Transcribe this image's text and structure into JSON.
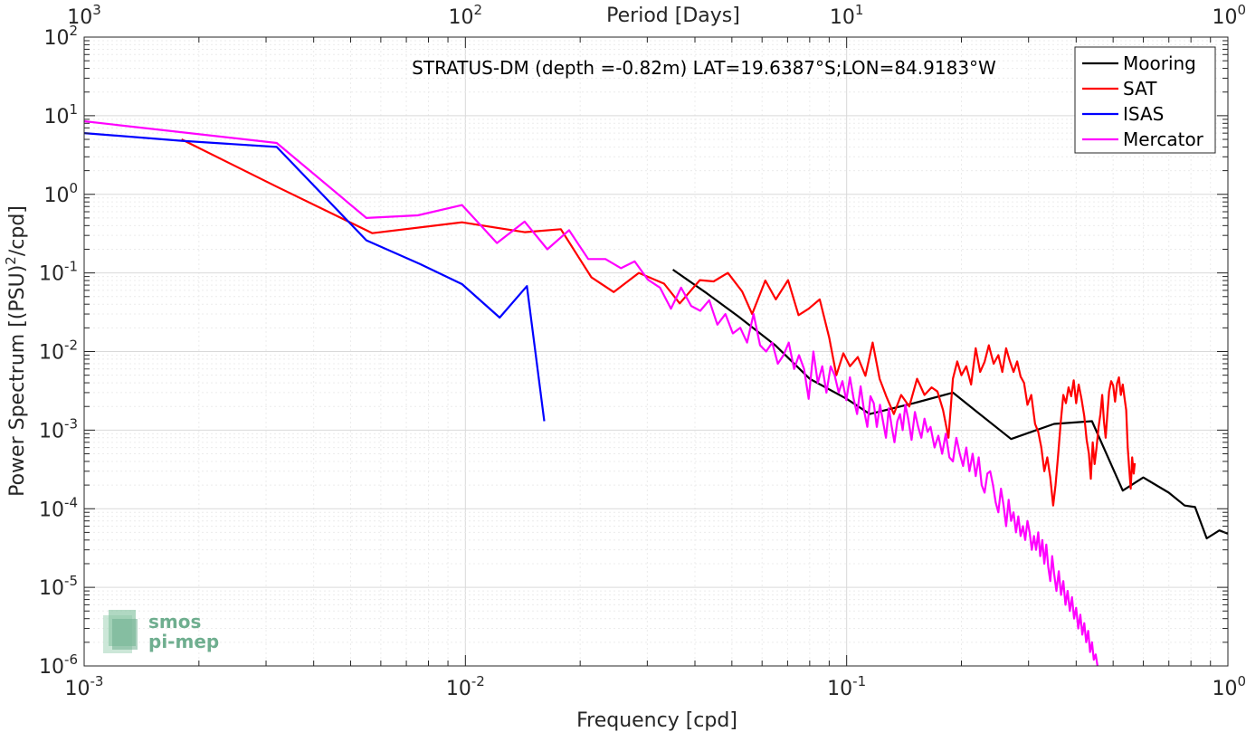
{
  "chart_data": {
    "type": "line",
    "title": "STRATUS-DM (depth =-0.82m) LAT=19.6387°S;LON=84.9183°W",
    "xlabel": "Frequency [cpd]",
    "ylabel": "Power Spectrum [(PSU)²/cpd]",
    "ylabel_base": "Power Spectrum [(PSU)",
    "ylabel_sup": "2",
    "ylabel_tail": "/cpd]",
    "top_xlabel": "Period [Days]",
    "xscale": "log",
    "yscale": "log",
    "xlim": [
      0.001,
      1
    ],
    "ylim": [
      1e-06,
      100
    ],
    "grid": true,
    "legend_position": "top-right",
    "x_ticks": [
      {
        "value": 0.001,
        "base": "10",
        "exp": "-3"
      },
      {
        "value": 0.01,
        "base": "10",
        "exp": "-2"
      },
      {
        "value": 0.1,
        "base": "10",
        "exp": "-1"
      },
      {
        "value": 1,
        "base": "10",
        "exp": "0"
      }
    ],
    "y_ticks": [
      {
        "value": 1e-06,
        "base": "10",
        "exp": "-6"
      },
      {
        "value": 1e-05,
        "base": "10",
        "exp": "-5"
      },
      {
        "value": 0.0001,
        "base": "10",
        "exp": "-4"
      },
      {
        "value": 0.001,
        "base": "10",
        "exp": "-3"
      },
      {
        "value": 0.01,
        "base": "10",
        "exp": "-2"
      },
      {
        "value": 0.1,
        "base": "10",
        "exp": "-1"
      },
      {
        "value": 1,
        "base": "10",
        "exp": "0"
      },
      {
        "value": 10,
        "base": "10",
        "exp": "1"
      },
      {
        "value": 100,
        "base": "10",
        "exp": "2"
      }
    ],
    "top_x_ticks": [
      {
        "value": 0.001,
        "base": "10",
        "exp": "3"
      },
      {
        "value": 0.01,
        "base": "10",
        "exp": "2"
      },
      {
        "value": 0.1,
        "base": "10",
        "exp": "1"
      },
      {
        "value": 1,
        "base": "10",
        "exp": "0"
      }
    ],
    "series": [
      {
        "name": "Mooring",
        "color": "#000000",
        "points": [
          [
            0.035,
            0.11
          ],
          [
            0.043,
            0.055
          ],
          [
            0.052,
            0.028
          ],
          [
            0.065,
            0.012
          ],
          [
            0.08,
            0.0045
          ],
          [
            0.1,
            0.0025
          ],
          [
            0.115,
            0.0016
          ],
          [
            0.15,
            0.0022
          ],
          [
            0.19,
            0.003
          ],
          [
            0.22,
            0.0017
          ],
          [
            0.27,
            0.00077
          ],
          [
            0.35,
            0.0012
          ],
          [
            0.44,
            0.0013
          ],
          [
            0.53,
            0.00017
          ],
          [
            0.6,
            0.00025
          ],
          [
            0.7,
            0.00016
          ],
          [
            0.77,
            0.00011
          ],
          [
            0.82,
            0.000105
          ],
          [
            0.88,
            4.2e-05
          ],
          [
            0.95,
            5.3e-05
          ],
          [
            1.0,
            4.8e-05
          ]
        ]
      },
      {
        "name": "SAT",
        "color": "#ff0000",
        "points": [
          [
            0.0018,
            5.0
          ],
          [
            0.0032,
            1.25
          ],
          [
            0.0057,
            0.32
          ],
          [
            0.0098,
            0.44
          ],
          [
            0.0143,
            0.33
          ],
          [
            0.0178,
            0.36
          ],
          [
            0.0214,
            0.088
          ],
          [
            0.0245,
            0.057
          ],
          [
            0.0285,
            0.1
          ],
          [
            0.0332,
            0.073
          ],
          [
            0.0365,
            0.041
          ],
          [
            0.0412,
            0.081
          ],
          [
            0.0448,
            0.078
          ],
          [
            0.0488,
            0.1
          ],
          [
            0.0532,
            0.058
          ],
          [
            0.0565,
            0.03
          ],
          [
            0.0612,
            0.08
          ],
          [
            0.0652,
            0.046
          ],
          [
            0.0702,
            0.081
          ],
          [
            0.0748,
            0.029
          ],
          [
            0.0795,
            0.035
          ],
          [
            0.085,
            0.046
          ],
          [
            0.09,
            0.015
          ],
          [
            0.094,
            0.005
          ],
          [
            0.098,
            0.0095
          ],
          [
            0.102,
            0.0065
          ],
          [
            0.107,
            0.0085
          ],
          [
            0.112,
            0.0049
          ],
          [
            0.117,
            0.013
          ],
          [
            0.122,
            0.0045
          ],
          [
            0.127,
            0.0027
          ],
          [
            0.133,
            0.0016
          ],
          [
            0.139,
            0.0028
          ],
          [
            0.146,
            0.002
          ],
          [
            0.153,
            0.0045
          ],
          [
            0.16,
            0.0028
          ],
          [
            0.167,
            0.0035
          ],
          [
            0.173,
            0.0031
          ],
          [
            0.179,
            0.0018
          ],
          [
            0.185,
            0.0008
          ],
          [
            0.19,
            0.0045
          ],
          [
            0.195,
            0.0075
          ],
          [
            0.2,
            0.005
          ],
          [
            0.206,
            0.0065
          ],
          [
            0.212,
            0.0038
          ],
          [
            0.218,
            0.011
          ],
          [
            0.224,
            0.0055
          ],
          [
            0.23,
            0.0074
          ],
          [
            0.236,
            0.012
          ],
          [
            0.243,
            0.007
          ],
          [
            0.25,
            0.009
          ],
          [
            0.256,
            0.0055
          ],
          [
            0.262,
            0.011
          ],
          [
            0.268,
            0.0075
          ],
          [
            0.274,
            0.0055
          ],
          [
            0.28,
            0.0075
          ],
          [
            0.286,
            0.0048
          ],
          [
            0.292,
            0.004
          ],
          [
            0.298,
            0.0021
          ],
          [
            0.305,
            0.0028
          ],
          [
            0.312,
            0.0012
          ],
          [
            0.318,
            0.00095
          ],
          [
            0.324,
            0.0006
          ],
          [
            0.33,
            0.0003
          ],
          [
            0.336,
            0.00045
          ],
          [
            0.342,
            0.00025
          ],
          [
            0.348,
            0.00011
          ],
          [
            0.353,
            0.0002
          ],
          [
            0.359,
            0.0005
          ],
          [
            0.364,
            0.0012
          ],
          [
            0.37,
            0.0028
          ],
          [
            0.376,
            0.0022
          ],
          [
            0.382,
            0.0035
          ],
          [
            0.388,
            0.0027
          ],
          [
            0.394,
            0.0043
          ],
          [
            0.4,
            0.0022
          ],
          [
            0.406,
            0.0038
          ],
          [
            0.413,
            0.0025
          ],
          [
            0.42,
            0.0015
          ],
          [
            0.426,
            0.00075
          ],
          [
            0.432,
            0.0005
          ],
          [
            0.437,
            0.00024
          ],
          [
            0.442,
            0.0007
          ],
          [
            0.447,
            0.00037
          ],
          [
            0.452,
            0.00058
          ],
          [
            0.458,
            0.0011
          ],
          [
            0.463,
            0.0016
          ],
          [
            0.468,
            0.0028
          ],
          [
            0.473,
            0.0013
          ],
          [
            0.478,
            0.0008
          ],
          [
            0.483,
            0.0016
          ],
          [
            0.488,
            0.0031
          ],
          [
            0.494,
            0.0042
          ],
          [
            0.5,
            0.0037
          ],
          [
            0.506,
            0.0023
          ],
          [
            0.512,
            0.0039
          ],
          [
            0.518,
            0.0047
          ],
          [
            0.524,
            0.0028
          ],
          [
            0.53,
            0.0038
          ],
          [
            0.536,
            0.0025
          ],
          [
            0.541,
            0.0018
          ],
          [
            0.546,
            0.0006
          ],
          [
            0.551,
            0.00033
          ],
          [
            0.556,
            0.00018
          ],
          [
            0.561,
            0.00045
          ],
          [
            0.566,
            0.00028
          ],
          [
            0.57,
            0.00038
          ]
        ]
      },
      {
        "name": "ISAS",
        "color": "#0000ff",
        "points": [
          [
            0.001,
            6.0
          ],
          [
            0.0018,
            4.8
          ],
          [
            0.0032,
            4.0
          ],
          [
            0.0055,
            0.26
          ],
          [
            0.0076,
            0.13
          ],
          [
            0.0098,
            0.072
          ],
          [
            0.0123,
            0.027
          ],
          [
            0.0145,
            0.068
          ],
          [
            0.0161,
            0.0013
          ]
        ]
      },
      {
        "name": "Mercator",
        "color": "#ff00ff",
        "points": [
          [
            0.001,
            8.5
          ],
          [
            0.0032,
            4.5
          ],
          [
            0.0055,
            0.5
          ],
          [
            0.0075,
            0.54
          ],
          [
            0.0098,
            0.73
          ],
          [
            0.0121,
            0.24
          ],
          [
            0.0143,
            0.45
          ],
          [
            0.0164,
            0.2
          ],
          [
            0.0187,
            0.35
          ],
          [
            0.021,
            0.15
          ],
          [
            0.0233,
            0.15
          ],
          [
            0.0256,
            0.115
          ],
          [
            0.0278,
            0.14
          ],
          [
            0.0301,
            0.082
          ],
          [
            0.0324,
            0.065
          ],
          [
            0.0346,
            0.035
          ],
          [
            0.0368,
            0.065
          ],
          [
            0.0391,
            0.038
          ],
          [
            0.0413,
            0.033
          ],
          [
            0.0436,
            0.045
          ],
          [
            0.0458,
            0.022
          ],
          [
            0.0481,
            0.03
          ],
          [
            0.0503,
            0.017
          ],
          [
            0.0526,
            0.02
          ],
          [
            0.0548,
            0.013
          ],
          [
            0.057,
            0.03
          ],
          [
            0.0593,
            0.012
          ],
          [
            0.0615,
            0.01
          ],
          [
            0.0638,
            0.013
          ],
          [
            0.066,
            0.007
          ],
          [
            0.0683,
            0.009
          ],
          [
            0.0705,
            0.013
          ],
          [
            0.0728,
            0.006
          ],
          [
            0.075,
            0.009
          ],
          [
            0.0773,
            0.006
          ],
          [
            0.0795,
            0.0025
          ],
          [
            0.0818,
            0.01
          ],
          [
            0.084,
            0.004
          ],
          [
            0.0863,
            0.0065
          ],
          [
            0.0885,
            0.003
          ],
          [
            0.0908,
            0.0065
          ],
          [
            0.093,
            0.005
          ],
          [
            0.0953,
            0.003
          ],
          [
            0.0975,
            0.0042
          ],
          [
            0.0998,
            0.0024
          ],
          [
            0.102,
            0.0047
          ],
          [
            0.1043,
            0.0025
          ],
          [
            0.1065,
            0.0016
          ],
          [
            0.1088,
            0.0036
          ],
          [
            0.111,
            0.0018
          ],
          [
            0.1133,
            0.0011
          ],
          [
            0.1155,
            0.0027
          ],
          [
            0.1178,
            0.0022
          ],
          [
            0.12,
            0.0011
          ],
          [
            0.1223,
            0.0021
          ],
          [
            0.1245,
            0.0013
          ],
          [
            0.1268,
            0.0008
          ],
          [
            0.129,
            0.0019
          ],
          [
            0.1313,
            0.0011
          ],
          [
            0.1335,
            0.0007
          ],
          [
            0.1358,
            0.0013
          ],
          [
            0.138,
            0.0016
          ],
          [
            0.1403,
            0.001
          ],
          [
            0.1425,
            0.0021
          ],
          [
            0.145,
            0.0014
          ],
          [
            0.148,
            0.00075
          ],
          [
            0.151,
            0.0017
          ],
          [
            0.154,
            0.0011
          ],
          [
            0.157,
            0.0008
          ],
          [
            0.16,
            0.0014
          ],
          [
            0.163,
            0.00095
          ],
          [
            0.166,
            0.0011
          ],
          [
            0.17,
            0.0006
          ],
          [
            0.174,
            0.00085
          ],
          [
            0.178,
            0.0005
          ],
          [
            0.182,
            0.0009
          ],
          [
            0.186,
            0.00045
          ],
          [
            0.19,
            0.0004
          ],
          [
            0.194,
            0.0008
          ],
          [
            0.198,
            0.0005
          ],
          [
            0.202,
            0.00035
          ],
          [
            0.206,
            0.0006
          ],
          [
            0.21,
            0.0003
          ],
          [
            0.214,
            0.0005
          ],
          [
            0.218,
            0.00026
          ],
          [
            0.222,
            0.00045
          ],
          [
            0.226,
            0.0002
          ],
          [
            0.23,
            0.00016
          ],
          [
            0.234,
            0.00028
          ],
          [
            0.238,
            0.0003
          ],
          [
            0.242,
            0.0002
          ],
          [
            0.246,
            0.00012
          ],
          [
            0.25,
            9e-05
          ],
          [
            0.254,
            0.00018
          ],
          [
            0.258,
            0.00011
          ],
          [
            0.262,
            6e-05
          ],
          [
            0.266,
            0.00013
          ],
          [
            0.27,
            7e-05
          ],
          [
            0.274,
            9e-05
          ],
          [
            0.278,
            5e-05
          ],
          [
            0.282,
            8e-05
          ],
          [
            0.286,
            4.5e-05
          ],
          [
            0.29,
            6e-05
          ],
          [
            0.294,
            4e-05
          ],
          [
            0.298,
            7e-05
          ],
          [
            0.302,
            5e-05
          ],
          [
            0.306,
            3e-05
          ],
          [
            0.31,
            4.5e-05
          ],
          [
            0.314,
            3e-05
          ],
          [
            0.318,
            5e-05
          ],
          [
            0.322,
            2.5e-05
          ],
          [
            0.326,
            4e-05
          ],
          [
            0.33,
            2e-05
          ],
          [
            0.334,
            3.5e-05
          ],
          [
            0.338,
            1.8e-05
          ],
          [
            0.342,
            1.2e-05
          ],
          [
            0.346,
            2.5e-05
          ],
          [
            0.35,
            1.5e-05
          ],
          [
            0.355,
            9e-06
          ],
          [
            0.36,
            1.6e-05
          ],
          [
            0.365,
            8e-06
          ],
          [
            0.37,
            1.2e-05
          ],
          [
            0.375,
            6e-06
          ],
          [
            0.38,
            9e-06
          ],
          [
            0.385,
            5e-06
          ],
          [
            0.39,
            7.5e-06
          ],
          [
            0.395,
            4e-06
          ],
          [
            0.4,
            5.5e-06
          ],
          [
            0.405,
            3e-06
          ],
          [
            0.41,
            4.5e-06
          ],
          [
            0.415,
            2.5e-06
          ],
          [
            0.42,
            3.5e-06
          ],
          [
            0.425,
            2e-06
          ],
          [
            0.43,
            2.8e-06
          ],
          [
            0.435,
            1.5e-06
          ],
          [
            0.44,
            2e-06
          ],
          [
            0.445,
            1.2e-06
          ],
          [
            0.45,
            1.4e-06
          ],
          [
            0.455,
            1e-06
          ]
        ]
      }
    ]
  },
  "logo": {
    "line1": "smos",
    "line2": "pi-mep",
    "color": "#6fae8f"
  }
}
